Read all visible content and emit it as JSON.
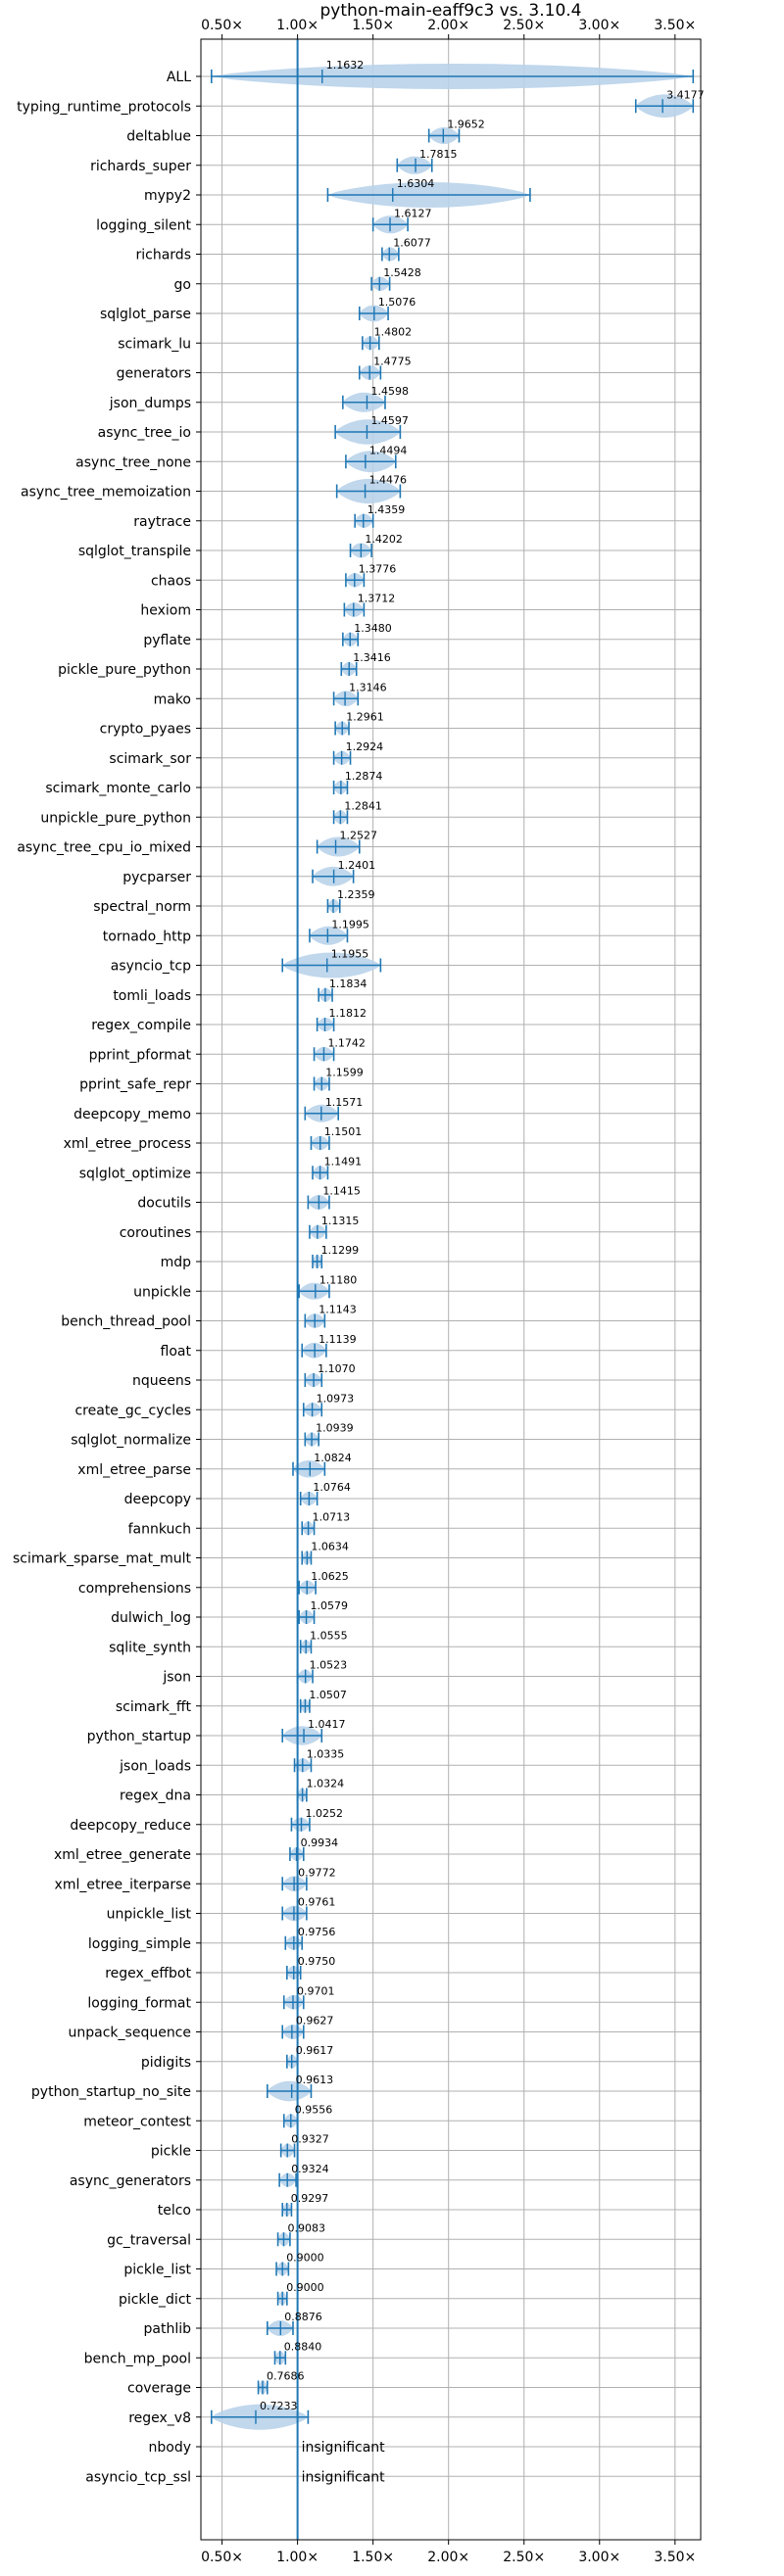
{
  "chart_data": {
    "type": "violin",
    "title": "python-main-eaff9c3 vs. 3.10.4",
    "x_ticks": [
      "0.50×",
      "1.00×",
      "1.50×",
      "2.00×",
      "2.50×",
      "3.00×",
      "3.50×"
    ],
    "x_tick_values": [
      0.5,
      1.0,
      1.5,
      2.0,
      2.5,
      3.0,
      3.5
    ],
    "xlim": [
      0.36,
      3.67
    ],
    "grid": true,
    "reference_line": 1.0,
    "colors": {
      "line": "#1f77b4",
      "violin": "#b9d3ea",
      "grid": "#b0b0b0"
    },
    "benchmarks": [
      {
        "name": "ALL",
        "median": "1.1632",
        "v": 1.1632,
        "min": 0.43,
        "max": 3.62
      },
      {
        "name": "typing_runtime_protocols",
        "median": "3.4177",
        "v": 3.4177,
        "min": 3.24,
        "max": 3.62
      },
      {
        "name": "deltablue",
        "median": "1.9652",
        "v": 1.9652,
        "min": 1.87,
        "max": 2.07
      },
      {
        "name": "richards_super",
        "median": "1.7815",
        "v": 1.7815,
        "min": 1.66,
        "max": 1.89
      },
      {
        "name": "mypy2",
        "median": "1.6304",
        "v": 1.6304,
        "min": 1.2,
        "max": 2.54
      },
      {
        "name": "logging_silent",
        "median": "1.6127",
        "v": 1.6127,
        "min": 1.5,
        "max": 1.73
      },
      {
        "name": "richards",
        "median": "1.6077",
        "v": 1.6077,
        "min": 1.56,
        "max": 1.67
      },
      {
        "name": "go",
        "median": "1.5428",
        "v": 1.5428,
        "min": 1.49,
        "max": 1.61
      },
      {
        "name": "sqlglot_parse",
        "median": "1.5076",
        "v": 1.5076,
        "min": 1.41,
        "max": 1.6
      },
      {
        "name": "scimark_lu",
        "median": "1.4802",
        "v": 1.4802,
        "min": 1.43,
        "max": 1.54
      },
      {
        "name": "generators",
        "median": "1.4775",
        "v": 1.4775,
        "min": 1.41,
        "max": 1.55
      },
      {
        "name": "json_dumps",
        "median": "1.4598",
        "v": 1.4598,
        "min": 1.3,
        "max": 1.58
      },
      {
        "name": "async_tree_io",
        "median": "1.4597",
        "v": 1.4597,
        "min": 1.25,
        "max": 1.68
      },
      {
        "name": "async_tree_none",
        "median": "1.4494",
        "v": 1.4494,
        "min": 1.32,
        "max": 1.65
      },
      {
        "name": "async_tree_memoization",
        "median": "1.4476",
        "v": 1.4476,
        "min": 1.26,
        "max": 1.68
      },
      {
        "name": "raytrace",
        "median": "1.4359",
        "v": 1.4359,
        "min": 1.38,
        "max": 1.5
      },
      {
        "name": "sqlglot_transpile",
        "median": "1.4202",
        "v": 1.4202,
        "min": 1.35,
        "max": 1.49
      },
      {
        "name": "chaos",
        "median": "1.3776",
        "v": 1.3776,
        "min": 1.32,
        "max": 1.44
      },
      {
        "name": "hexiom",
        "median": "1.3712",
        "v": 1.3712,
        "min": 1.31,
        "max": 1.44
      },
      {
        "name": "pyflate",
        "median": "1.3480",
        "v": 1.348,
        "min": 1.3,
        "max": 1.4
      },
      {
        "name": "pickle_pure_python",
        "median": "1.3416",
        "v": 1.3416,
        "min": 1.29,
        "max": 1.39
      },
      {
        "name": "mako",
        "median": "1.3146",
        "v": 1.3146,
        "min": 1.24,
        "max": 1.4
      },
      {
        "name": "crypto_pyaes",
        "median": "1.2961",
        "v": 1.2961,
        "min": 1.25,
        "max": 1.34
      },
      {
        "name": "scimark_sor",
        "median": "1.2924",
        "v": 1.2924,
        "min": 1.24,
        "max": 1.35
      },
      {
        "name": "scimark_monte_carlo",
        "median": "1.2874",
        "v": 1.2874,
        "min": 1.24,
        "max": 1.33
      },
      {
        "name": "unpickle_pure_python",
        "median": "1.2841",
        "v": 1.2841,
        "min": 1.24,
        "max": 1.33
      },
      {
        "name": "async_tree_cpu_io_mixed",
        "median": "1.2527",
        "v": 1.2527,
        "min": 1.13,
        "max": 1.41
      },
      {
        "name": "pycparser",
        "median": "1.2401",
        "v": 1.2401,
        "min": 1.1,
        "max": 1.37
      },
      {
        "name": "spectral_norm",
        "median": "1.2359",
        "v": 1.2359,
        "min": 1.2,
        "max": 1.28
      },
      {
        "name": "tornado_http",
        "median": "1.1995",
        "v": 1.1995,
        "min": 1.08,
        "max": 1.33
      },
      {
        "name": "asyncio_tcp",
        "median": "1.1955",
        "v": 1.1955,
        "min": 0.9,
        "max": 1.55
      },
      {
        "name": "tomli_loads",
        "median": "1.1834",
        "v": 1.1834,
        "min": 1.14,
        "max": 1.23
      },
      {
        "name": "regex_compile",
        "median": "1.1812",
        "v": 1.1812,
        "min": 1.13,
        "max": 1.24
      },
      {
        "name": "pprint_pformat",
        "median": "1.1742",
        "v": 1.1742,
        "min": 1.11,
        "max": 1.24
      },
      {
        "name": "pprint_safe_repr",
        "median": "1.1599",
        "v": 1.1599,
        "min": 1.11,
        "max": 1.21
      },
      {
        "name": "deepcopy_memo",
        "median": "1.1571",
        "v": 1.1571,
        "min": 1.05,
        "max": 1.27
      },
      {
        "name": "xml_etree_process",
        "median": "1.1501",
        "v": 1.1501,
        "min": 1.09,
        "max": 1.21
      },
      {
        "name": "sqlglot_optimize",
        "median": "1.1491",
        "v": 1.1491,
        "min": 1.1,
        "max": 1.2
      },
      {
        "name": "docutils",
        "median": "1.1415",
        "v": 1.1415,
        "min": 1.07,
        "max": 1.21
      },
      {
        "name": "coroutines",
        "median": "1.1315",
        "v": 1.1315,
        "min": 1.08,
        "max": 1.19
      },
      {
        "name": "mdp",
        "median": "1.1299",
        "v": 1.1299,
        "min": 1.1,
        "max": 1.16
      },
      {
        "name": "unpickle",
        "median": "1.1180",
        "v": 1.118,
        "min": 1.01,
        "max": 1.21
      },
      {
        "name": "bench_thread_pool",
        "median": "1.1143",
        "v": 1.1143,
        "min": 1.05,
        "max": 1.18
      },
      {
        "name": "float",
        "median": "1.1139",
        "v": 1.1139,
        "min": 1.03,
        "max": 1.19
      },
      {
        "name": "nqueens",
        "median": "1.1070",
        "v": 1.107,
        "min": 1.05,
        "max": 1.16
      },
      {
        "name": "create_gc_cycles",
        "median": "1.0973",
        "v": 1.0973,
        "min": 1.04,
        "max": 1.16
      },
      {
        "name": "sqlglot_normalize",
        "median": "1.0939",
        "v": 1.0939,
        "min": 1.05,
        "max": 1.14
      },
      {
        "name": "xml_etree_parse",
        "median": "1.0824",
        "v": 1.0824,
        "min": 0.97,
        "max": 1.18
      },
      {
        "name": "deepcopy",
        "median": "1.0764",
        "v": 1.0764,
        "min": 1.02,
        "max": 1.13
      },
      {
        "name": "fannkuch",
        "median": "1.0713",
        "v": 1.0713,
        "min": 1.03,
        "max": 1.11
      },
      {
        "name": "scimark_sparse_mat_mult",
        "median": "1.0634",
        "v": 1.0634,
        "min": 1.03,
        "max": 1.09
      },
      {
        "name": "comprehensions",
        "median": "1.0625",
        "v": 1.0625,
        "min": 1.01,
        "max": 1.12
      },
      {
        "name": "dulwich_log",
        "median": "1.0579",
        "v": 1.0579,
        "min": 1.01,
        "max": 1.11
      },
      {
        "name": "sqlite_synth",
        "median": "1.0555",
        "v": 1.0555,
        "min": 1.02,
        "max": 1.09
      },
      {
        "name": "json",
        "median": "1.0523",
        "v": 1.0523,
        "min": 1.0,
        "max": 1.1
      },
      {
        "name": "scimark_fft",
        "median": "1.0507",
        "v": 1.0507,
        "min": 1.02,
        "max": 1.08
      },
      {
        "name": "python_startup",
        "median": "1.0417",
        "v": 1.0417,
        "min": 0.9,
        "max": 1.16
      },
      {
        "name": "json_loads",
        "median": "1.0335",
        "v": 1.0335,
        "min": 0.98,
        "max": 1.09
      },
      {
        "name": "regex_dna",
        "median": "1.0324",
        "v": 1.0324,
        "min": 1.0,
        "max": 1.06
      },
      {
        "name": "deepcopy_reduce",
        "median": "1.0252",
        "v": 1.0252,
        "min": 0.96,
        "max": 1.08
      },
      {
        "name": "xml_etree_generate",
        "median": "0.9934",
        "v": 0.9934,
        "min": 0.95,
        "max": 1.04
      },
      {
        "name": "xml_etree_iterparse",
        "median": "0.9772",
        "v": 0.9772,
        "min": 0.9,
        "max": 1.06
      },
      {
        "name": "unpickle_list",
        "median": "0.9761",
        "v": 0.9761,
        "min": 0.9,
        "max": 1.06
      },
      {
        "name": "logging_simple",
        "median": "0.9756",
        "v": 0.9756,
        "min": 0.92,
        "max": 1.03
      },
      {
        "name": "regex_effbot",
        "median": "0.9750",
        "v": 0.975,
        "min": 0.93,
        "max": 1.02
      },
      {
        "name": "logging_format",
        "median": "0.9701",
        "v": 0.9701,
        "min": 0.91,
        "max": 1.04
      },
      {
        "name": "unpack_sequence",
        "median": "0.9627",
        "v": 0.9627,
        "min": 0.9,
        "max": 1.04
      },
      {
        "name": "pidigits",
        "median": "0.9617",
        "v": 0.9617,
        "min": 0.93,
        "max": 1.0
      },
      {
        "name": "python_startup_no_site",
        "median": "0.9613",
        "v": 0.9613,
        "min": 0.8,
        "max": 1.09
      },
      {
        "name": "meteor_contest",
        "median": "0.9556",
        "v": 0.9556,
        "min": 0.91,
        "max": 1.0
      },
      {
        "name": "pickle",
        "median": "0.9327",
        "v": 0.9327,
        "min": 0.89,
        "max": 0.98
      },
      {
        "name": "async_generators",
        "median": "0.9324",
        "v": 0.9324,
        "min": 0.88,
        "max": 0.99
      },
      {
        "name": "telco",
        "median": "0.9297",
        "v": 0.9297,
        "min": 0.9,
        "max": 0.96
      },
      {
        "name": "gc_traversal",
        "median": "0.9083",
        "v": 0.9083,
        "min": 0.87,
        "max": 0.95
      },
      {
        "name": "pickle_list",
        "median": "0.9000",
        "v": 0.9,
        "min": 0.86,
        "max": 0.94
      },
      {
        "name": "pickle_dict",
        "median": "0.9000",
        "v": 0.9,
        "min": 0.87,
        "max": 0.93
      },
      {
        "name": "pathlib",
        "median": "0.8876",
        "v": 0.8876,
        "min": 0.8,
        "max": 0.97
      },
      {
        "name": "bench_mp_pool",
        "median": "0.8840",
        "v": 0.884,
        "min": 0.85,
        "max": 0.92
      },
      {
        "name": "coverage",
        "median": "0.7686",
        "v": 0.7686,
        "min": 0.74,
        "max": 0.8
      },
      {
        "name": "regex_v8",
        "median": "0.7233",
        "v": 0.7233,
        "min": 0.43,
        "max": 1.07
      },
      {
        "name": "nbody",
        "median": "insignificant",
        "v": null,
        "min": null,
        "max": null
      },
      {
        "name": "asyncio_tcp_ssl",
        "median": "insignificant",
        "v": null,
        "min": null,
        "max": null
      }
    ]
  }
}
